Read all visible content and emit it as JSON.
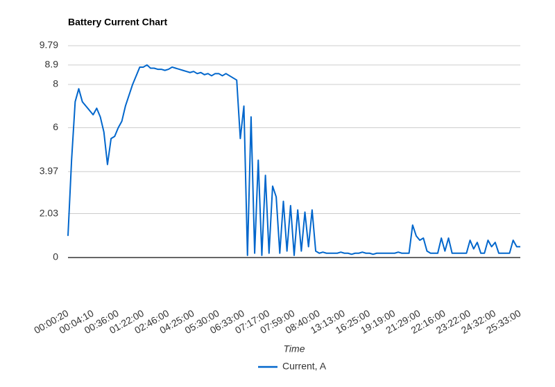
{
  "chart_data": {
    "type": "line",
    "title": "Battery Current Chart",
    "x_label": "Time",
    "categories": [
      "00:00:20",
      null,
      null,
      null,
      null,
      null,
      null,
      "00:04:10",
      null,
      null,
      null,
      null,
      null,
      null,
      "00:36:00",
      null,
      null,
      null,
      null,
      null,
      null,
      "01:22:00",
      null,
      null,
      null,
      null,
      null,
      null,
      "02:46:00",
      null,
      null,
      null,
      null,
      null,
      null,
      "04:25:00",
      null,
      null,
      null,
      null,
      null,
      null,
      "05:30:00",
      null,
      null,
      null,
      null,
      null,
      null,
      "06:33:00",
      null,
      null,
      null,
      null,
      null,
      null,
      "07:17:00",
      null,
      null,
      null,
      null,
      null,
      null,
      "07:59:00",
      null,
      null,
      null,
      null,
      null,
      null,
      "08:40:00",
      null,
      null,
      null,
      null,
      null,
      null,
      "13:13:00",
      null,
      null,
      null,
      null,
      null,
      null,
      "16:25:00",
      null,
      null,
      null,
      null,
      null,
      null,
      "19:19:00",
      null,
      null,
      null,
      null,
      null,
      null,
      "21:29:00",
      null,
      null,
      null,
      null,
      null,
      null,
      "22:16:00",
      null,
      null,
      null,
      null,
      null,
      null,
      "23:22:00",
      null,
      null,
      null,
      null,
      null,
      null,
      "24:32:00",
      null,
      null,
      null,
      null,
      null,
      null,
      "25:33:00"
    ],
    "series": [
      {
        "name": "Current, A",
        "color": "#0066cc",
        "values": [
          1.0,
          4.5,
          7.2,
          7.8,
          7.2,
          7.0,
          6.8,
          6.6,
          6.9,
          6.5,
          5.8,
          4.3,
          5.5,
          5.6,
          6.0,
          6.3,
          7.0,
          7.5,
          8.0,
          8.4,
          8.8,
          8.8,
          8.9,
          8.75,
          8.75,
          8.7,
          8.7,
          8.65,
          8.7,
          8.8,
          8.75,
          8.7,
          8.65,
          8.6,
          8.55,
          8.6,
          8.5,
          8.55,
          8.45,
          8.5,
          8.4,
          8.5,
          8.5,
          8.4,
          8.5,
          8.4,
          8.3,
          8.2,
          5.5,
          7.0,
          0.1,
          6.5,
          0.2,
          4.5,
          0.1,
          3.8,
          0.2,
          3.3,
          2.8,
          0.2,
          2.6,
          0.3,
          2.4,
          0.1,
          2.2,
          0.3,
          2.1,
          0.5,
          2.2,
          0.3,
          0.2,
          0.25,
          0.2,
          0.2,
          0.2,
          0.2,
          0.25,
          0.2,
          0.2,
          0.15,
          0.2,
          0.2,
          0.25,
          0.2,
          0.2,
          0.15,
          0.2,
          0.2,
          0.2,
          0.2,
          0.2,
          0.2,
          0.25,
          0.2,
          0.2,
          0.2,
          1.5,
          1.0,
          0.8,
          0.9,
          0.3,
          0.2,
          0.2,
          0.2,
          0.9,
          0.3,
          0.9,
          0.2,
          0.2,
          0.2,
          0.2,
          0.2,
          0.8,
          0.4,
          0.7,
          0.2,
          0.2,
          0.8,
          0.5,
          0.7,
          0.2,
          0.2,
          0.2,
          0.2,
          0.8,
          0.5,
          0.5
        ]
      }
    ],
    "ylim": [
      0,
      9.79
    ],
    "yticks": [
      0,
      2.03,
      3.97,
      6,
      8,
      8.9,
      9.79
    ],
    "grid": true,
    "legend": "bottom"
  }
}
